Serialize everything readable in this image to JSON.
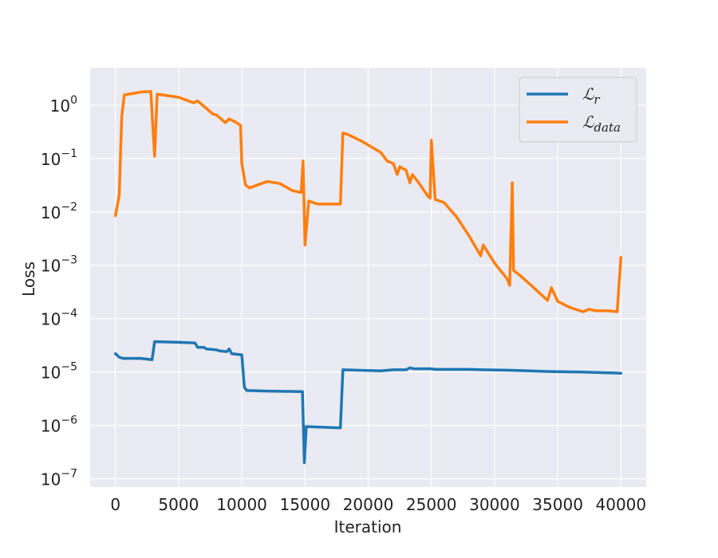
{
  "chart_data": {
    "type": "line",
    "title": "",
    "xlabel": "Iteration",
    "ylabel": "Loss",
    "xscale": "linear",
    "yscale": "log",
    "xlim": [
      -2000,
      42000
    ],
    "ylim": [
      7e-08,
      5
    ],
    "xticks": [
      0,
      5000,
      10000,
      15000,
      20000,
      25000,
      30000,
      35000,
      40000
    ],
    "xtick_labels": [
      "0",
      "5000",
      "10000",
      "15000",
      "20000",
      "25000",
      "30000",
      "35000",
      "40000"
    ],
    "yticks": [
      1e-07,
      1e-06,
      1e-05,
      0.0001,
      0.001,
      0.01,
      0.1,
      1
    ],
    "ytick_labels": [
      {
        "base": "10",
        "exp": "−7"
      },
      {
        "base": "10",
        "exp": "−6"
      },
      {
        "base": "10",
        "exp": "−5"
      },
      {
        "base": "10",
        "exp": "−4"
      },
      {
        "base": "10",
        "exp": "−3"
      },
      {
        "base": "10",
        "exp": "−2"
      },
      {
        "base": "10",
        "exp": "−1"
      },
      {
        "base": "10",
        "exp": "0"
      }
    ],
    "grid": true,
    "legend_position": "top-right",
    "series": [
      {
        "name": "ℒ",
        "name_sub": "r",
        "color": "#1f77b4",
        "points": [
          [
            0,
            2.2e-05
          ],
          [
            300,
            1.9e-05
          ],
          [
            600,
            1.8e-05
          ],
          [
            2000,
            1.8e-05
          ],
          [
            2900,
            1.7e-05
          ],
          [
            3100,
            3.7e-05
          ],
          [
            5000,
            3.6e-05
          ],
          [
            6300,
            3.5e-05
          ],
          [
            6500,
            2.9e-05
          ],
          [
            7000,
            2.9e-05
          ],
          [
            7200,
            2.7e-05
          ],
          [
            8000,
            2.6e-05
          ],
          [
            8200,
            2.5e-05
          ],
          [
            8800,
            2.4e-05
          ],
          [
            9000,
            2.7e-05
          ],
          [
            9200,
            2.2e-05
          ],
          [
            10000,
            2.1e-05
          ],
          [
            10200,
            5.2e-06
          ],
          [
            10400,
            4.5e-06
          ],
          [
            12000,
            4.4e-06
          ],
          [
            14800,
            4.3e-06
          ],
          [
            14950,
            2e-07
          ],
          [
            15100,
            9.5e-07
          ],
          [
            17800,
            9e-07
          ],
          [
            18000,
            1.1e-05
          ],
          [
            21000,
            1.05e-05
          ],
          [
            22000,
            1.1e-05
          ],
          [
            23000,
            1.1e-05
          ],
          [
            23300,
            1.2e-05
          ],
          [
            23600,
            1.15e-05
          ],
          [
            25000,
            1.15e-05
          ],
          [
            25300,
            1.12e-05
          ],
          [
            28000,
            1.12e-05
          ],
          [
            29000,
            1.1e-05
          ],
          [
            31000,
            1.08e-05
          ],
          [
            34500,
            1.02e-05
          ],
          [
            37000,
            1e-05
          ],
          [
            40000,
            9.5e-06
          ]
        ]
      },
      {
        "name": "ℒ",
        "name_sub": "data",
        "color": "#ff7f0e",
        "points": [
          [
            0,
            0.0085
          ],
          [
            300,
            0.02
          ],
          [
            500,
            0.6
          ],
          [
            700,
            1.55
          ],
          [
            2000,
            1.75
          ],
          [
            2800,
            1.8
          ],
          [
            3100,
            0.11
          ],
          [
            3300,
            1.6
          ],
          [
            5000,
            1.4
          ],
          [
            6200,
            1.1
          ],
          [
            6500,
            1.2
          ],
          [
            7000,
            0.95
          ],
          [
            7700,
            0.68
          ],
          [
            8000,
            0.65
          ],
          [
            8700,
            0.47
          ],
          [
            9000,
            0.55
          ],
          [
            9500,
            0.48
          ],
          [
            9900,
            0.42
          ],
          [
            10000,
            0.08
          ],
          [
            10300,
            0.032
          ],
          [
            10600,
            0.028
          ],
          [
            12000,
            0.037
          ],
          [
            13000,
            0.034
          ],
          [
            14000,
            0.025
          ],
          [
            14700,
            0.023
          ],
          [
            14850,
            0.09
          ],
          [
            15000,
            0.0024
          ],
          [
            15300,
            0.016
          ],
          [
            16000,
            0.014
          ],
          [
            17800,
            0.014
          ],
          [
            18000,
            0.3
          ],
          [
            18400,
            0.28
          ],
          [
            19500,
            0.21
          ],
          [
            21000,
            0.13
          ],
          [
            21500,
            0.09
          ],
          [
            22000,
            0.08
          ],
          [
            22300,
            0.05
          ],
          [
            22500,
            0.07
          ],
          [
            23000,
            0.06
          ],
          [
            23300,
            0.035
          ],
          [
            23500,
            0.05
          ],
          [
            24000,
            0.035
          ],
          [
            24700,
            0.02
          ],
          [
            24900,
            0.018
          ],
          [
            25000,
            0.22
          ],
          [
            25300,
            0.017
          ],
          [
            26000,
            0.015
          ],
          [
            27000,
            0.008
          ],
          [
            28000,
            0.0035
          ],
          [
            28500,
            0.0022
          ],
          [
            28900,
            0.0015
          ],
          [
            29100,
            0.0024
          ],
          [
            30000,
            0.0011
          ],
          [
            31000,
            0.00055
          ],
          [
            31200,
            0.00042
          ],
          [
            31400,
            0.035
          ],
          [
            31500,
            0.0008
          ],
          [
            32000,
            0.00065
          ],
          [
            33000,
            0.0004
          ],
          [
            34200,
            0.00022
          ],
          [
            34500,
            0.00038
          ],
          [
            35000,
            0.00021
          ],
          [
            36000,
            0.00016
          ],
          [
            37000,
            0.000135
          ],
          [
            37500,
            0.00015
          ],
          [
            38000,
            0.00014
          ],
          [
            39000,
            0.00014
          ],
          [
            39700,
            0.000135
          ],
          [
            40000,
            0.0014
          ]
        ]
      }
    ]
  }
}
